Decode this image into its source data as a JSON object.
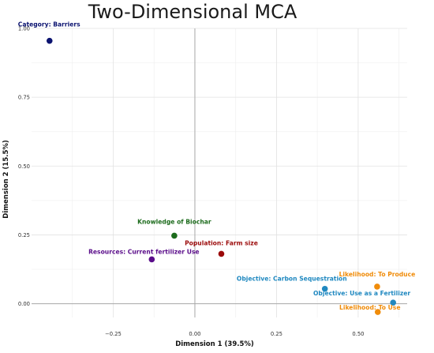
{
  "chart_data": {
    "type": "scatter",
    "title": "Two-Dimensional MCA",
    "xlabel": "Dimension 1 (39.5%)",
    "ylabel": "Dimension 2 (15.5%)",
    "xlim": [
      -0.5,
      0.65
    ],
    "ylim": [
      -0.05,
      1.0
    ],
    "xticks": [
      {
        "value": -0.25,
        "label": "−0.25"
      },
      {
        "value": 0.0,
        "label": "0.00"
      },
      {
        "value": 0.25,
        "label": "0.25"
      },
      {
        "value": 0.5,
        "label": "0.50"
      }
    ],
    "yticks": [
      {
        "value": 0.0,
        "label": "0.00"
      },
      {
        "value": 0.25,
        "label": "0.25"
      },
      {
        "value": 0.5,
        "label": "0.50"
      },
      {
        "value": 0.75,
        "label": "0.75"
      },
      {
        "value": 1.0,
        "label": "1.00"
      }
    ],
    "grid": true,
    "legend": "none",
    "points": [
      {
        "label": "Category: Barriers",
        "x": -0.445,
        "y": 0.955,
        "color": "#0b1370"
      },
      {
        "label": "Knowledge of Biochar",
        "x": -0.063,
        "y": 0.247,
        "color": "#1c6b1c"
      },
      {
        "label": "Population: Farm size",
        "x": 0.081,
        "y": 0.181,
        "color": "#9b0a0a"
      },
      {
        "label": "Resources: Current fertilizer Use",
        "x": -0.132,
        "y": 0.161,
        "color": "#5a0d8a"
      },
      {
        "label": "Objective: Carbon Sequestration",
        "x": 0.398,
        "y": 0.054,
        "color": "#1f88c0"
      },
      {
        "label": "Likelihood: To Produce",
        "x": 0.558,
        "y": 0.062,
        "color": "#f08c0a"
      },
      {
        "label": "Objective: Use as a Fertilizer",
        "x": 0.607,
        "y": 0.004,
        "color": "#1f88c0"
      },
      {
        "label": "Likelihood: To Use",
        "x": 0.56,
        "y": -0.03,
        "color": "#f08c0a"
      }
    ]
  }
}
